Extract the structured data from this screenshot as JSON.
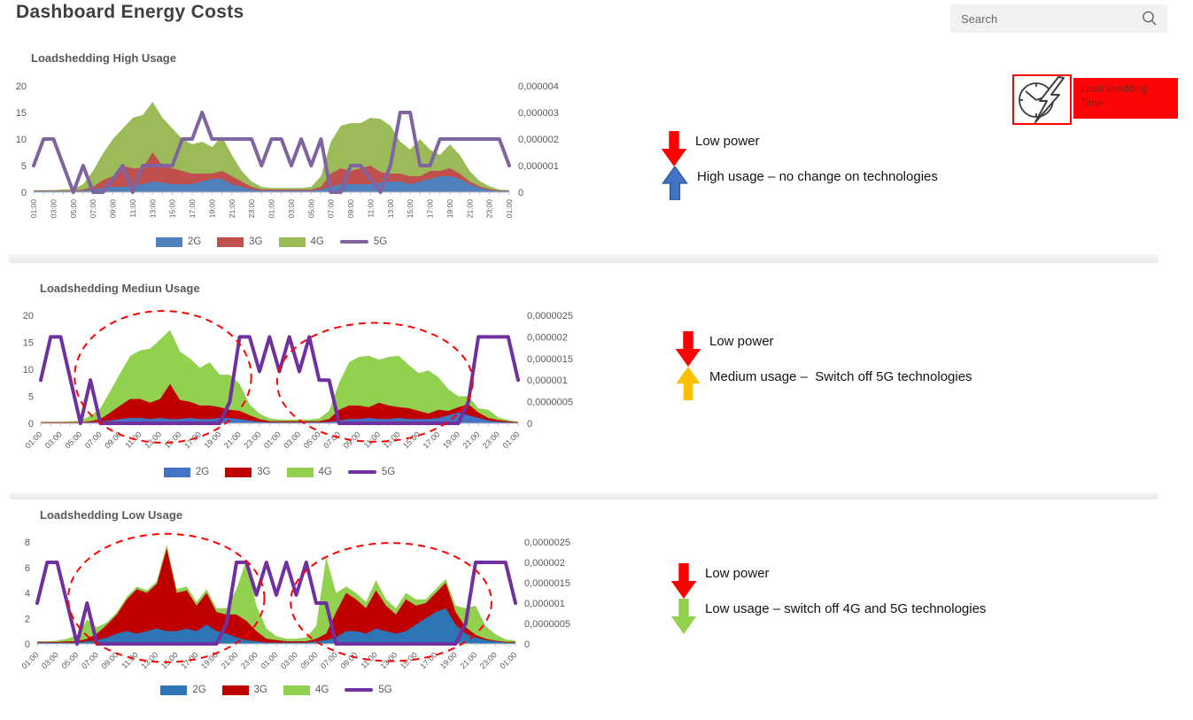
{
  "header": {
    "title": "Dashboard Energy Costs",
    "search_placeholder": "Search"
  },
  "badge": {
    "label": "Load shedding Time",
    "bg": "#fe0505",
    "text_color": "#7b231c",
    "border": "#ff0000"
  },
  "annotations": {
    "high": {
      "items": [
        {
          "icon": "down-arrow",
          "label": "Low power",
          "fill": "#ff0000",
          "stroke": "#e60000"
        },
        {
          "icon": "up-arrow",
          "label": "High usage – no change on technologies",
          "fill": "#4472c4",
          "stroke": "#2e5a9c"
        }
      ]
    },
    "medium": {
      "items": [
        {
          "icon": "down-arrow",
          "label": "Low power",
          "fill": "#ff0000",
          "stroke": "#e60000"
        },
        {
          "icon": "up-arrow",
          "label": "Medium usage –  Switch off 5G technologies",
          "fill": "#ffc000",
          "stroke": "#e8a900"
        }
      ]
    },
    "low": {
      "items": [
        {
          "icon": "down-arrow",
          "label": "Low power",
          "fill": "#ff0000",
          "stroke": "#e60000"
        },
        {
          "icon": "down-arrow",
          "label": "Low usage – switch off 4G and 5G technologies",
          "fill": "#92d050",
          "stroke": "#7ab33e"
        }
      ]
    }
  },
  "chart_data": [
    {
      "type": "area",
      "title": "Loadshedding High Usage",
      "ylim_left": [
        0,
        20
      ],
      "yticks_left": [
        20,
        15,
        10,
        5,
        0
      ],
      "right_axis_labels": [
        "0,000004",
        "0,000003",
        "0,000002",
        "0,000001",
        "0"
      ],
      "ylim_right_micro": [
        0,
        4
      ],
      "x_tick_rotation": "vertical",
      "legend_position": "bottom",
      "x_tick_labels": [
        "01:00",
        "03:00",
        "05:00",
        "07:00",
        "09:00",
        "11:00",
        "13:00",
        "15:00",
        "17:00",
        "19:00",
        "21:00",
        "23:00",
        "01:00",
        "03:00",
        "05:00",
        "07:00",
        "09:00",
        "11:00",
        "13:00",
        "15:00",
        "17:00",
        "19:00",
        "21:00",
        "23:00",
        "01:00"
      ],
      "series": [
        {
          "name": "2G",
          "type": "area",
          "axis": "left",
          "color": "#4f81bd",
          "values": [
            0.2,
            0.2,
            0.2,
            0.2,
            0.2,
            0.3,
            0.5,
            0.8,
            1,
            1,
            1.2,
            1.5,
            2,
            1.8,
            1.5,
            1.5,
            1.5,
            2,
            2.5,
            2.5,
            1.5,
            1,
            0.5,
            0.3,
            0.3,
            0.3,
            0.3,
            0.3,
            0.3,
            0.5,
            1,
            1.5,
            1.5,
            1.5,
            1.5,
            1.8,
            2,
            2,
            1.5,
            2,
            2.5,
            3,
            3,
            2.5,
            1.5,
            0.8,
            0.4,
            0.2,
            0.2
          ]
        },
        {
          "name": "3G",
          "type": "area",
          "axis": "left",
          "color": "#c0504d",
          "values": [
            0.1,
            0.1,
            0.1,
            0.1,
            0.1,
            0.2,
            0.5,
            1.5,
            2,
            4,
            3.3,
            3,
            5.5,
            3.2,
            3,
            2.5,
            2,
            1.5,
            1,
            1.5,
            1.5,
            1,
            0.5,
            0.2,
            0.2,
            0.2,
            0.2,
            0.2,
            0.2,
            0.5,
            2.5,
            3,
            2.5,
            3,
            3.5,
            2,
            1.5,
            1.5,
            1.5,
            1,
            1.5,
            1,
            1.5,
            1,
            0.5,
            0.3,
            0.2,
            0.1,
            0.1
          ]
        },
        {
          "name": "4G",
          "type": "area",
          "axis": "left",
          "color": "#9bbb59",
          "values": [
            0.1,
            0.1,
            0.1,
            0.2,
            0.3,
            1,
            3,
            5,
            7,
            7,
            9.5,
            10,
            9.5,
            9,
            7.5,
            6,
            5.5,
            6,
            5,
            6.5,
            4,
            2,
            1,
            0.5,
            0.3,
            0.3,
            0.3,
            0.3,
            0.5,
            2,
            6,
            8,
            9,
            8.5,
            9,
            10,
            9,
            6,
            5,
            7,
            4,
            3,
            4.5,
            3.5,
            2,
            1,
            0.5,
            0.2,
            0.1
          ]
        },
        {
          "name": "5G",
          "type": "line",
          "axis": "right",
          "color": "#8064a2",
          "values_micro": [
            1,
            2,
            2,
            1,
            0,
            1,
            0,
            0,
            0.5,
            1,
            0,
            1,
            1,
            1,
            1,
            2,
            2,
            3,
            2,
            2,
            2,
            2,
            2,
            1,
            2,
            2,
            1,
            2,
            1,
            2,
            0,
            0,
            1,
            1,
            0.5,
            0,
            1,
            3,
            3,
            1,
            1,
            2,
            2,
            2,
            2,
            2,
            2,
            2,
            1
          ]
        }
      ]
    },
    {
      "type": "area",
      "title": "Loadshedding Mediun Usage",
      "ylim_left": [
        0,
        20
      ],
      "yticks_left": [
        20,
        15,
        10,
        5,
        0
      ],
      "right_axis_labels": [
        "0,0000025",
        "0,000002",
        "0,0000015",
        "0,000001",
        "0,0000005",
        "0"
      ],
      "ylim_right_micro": [
        0,
        2.5
      ],
      "x_tick_rotation": "45",
      "legend_position": "bottom",
      "x_tick_labels": [
        "01:00",
        "03:00",
        "05:00",
        "07:00",
        "09:00",
        "11:00",
        "13:00",
        "15:00",
        "17:00",
        "19:00",
        "21:00",
        "23:00",
        "01:00",
        "03:00",
        "05:00",
        "07:00",
        "09:00",
        "11:00",
        "13:00",
        "15:00",
        "17:00",
        "19:00",
        "21:00",
        "23:00",
        "01:00"
      ],
      "series": [
        {
          "name": "2G",
          "type": "area",
          "axis": "left",
          "color": "#4472c4",
          "values": [
            0.1,
            0.1,
            0.1,
            0.1,
            0.1,
            0.2,
            0.3,
            0.5,
            0.8,
            1,
            1,
            0.8,
            1,
            0.8,
            0.8,
            1,
            0.8,
            0.8,
            1,
            1,
            0.8,
            0.5,
            0.3,
            0.2,
            0.2,
            0.2,
            0.2,
            0.2,
            0.2,
            0.3,
            0.5,
            0.8,
            0.8,
            1,
            0.8,
            0.8,
            1,
            0.8,
            0.8,
            0.8,
            1,
            1.5,
            2,
            1.5,
            1,
            0.5,
            0.3,
            0.2,
            0.1
          ]
        },
        {
          "name": "3G",
          "type": "area",
          "axis": "left",
          "color": "#c00000",
          "values": [
            0.1,
            0.1,
            0.1,
            0.1,
            0.1,
            0.2,
            0.5,
            1.5,
            2.5,
            3.5,
            3.5,
            3,
            3.5,
            6.5,
            3.5,
            3,
            2.5,
            2.5,
            2,
            1.5,
            1.5,
            1,
            0.5,
            0.2,
            0.2,
            0.2,
            0.2,
            0.2,
            0.2,
            0.5,
            2,
            2.5,
            2.5,
            2,
            3,
            2.5,
            2,
            2,
            1.5,
            1,
            1.5,
            0.8,
            1,
            2,
            1,
            0.5,
            0.3,
            0.2,
            0.1
          ]
        },
        {
          "name": "4G",
          "type": "area",
          "axis": "left",
          "color": "#92d050",
          "values": [
            0.1,
            0.1,
            0.1,
            0.2,
            0.3,
            1,
            2,
            4,
            6,
            8,
            9,
            10,
            11,
            10,
            9,
            8,
            7,
            8,
            6,
            6.5,
            5,
            2,
            1,
            0.5,
            0.3,
            0.3,
            0.3,
            0.3,
            0.5,
            1.5,
            5,
            8,
            9,
            9.5,
            8,
            9,
            9.5,
            8,
            7,
            8,
            6,
            4,
            2,
            1.5,
            0.8,
            1.5,
            0.5,
            0.2,
            0.1
          ]
        },
        {
          "name": "5G",
          "type": "line",
          "axis": "right",
          "color": "#7030a0",
          "values_micro": [
            1,
            2,
            2,
            1,
            0,
            1,
            0,
            0,
            0,
            0,
            0,
            0,
            0,
            0,
            0,
            0,
            0,
            0,
            0,
            0.5,
            2,
            2,
            1.2,
            2,
            1.2,
            2,
            1.2,
            2,
            1,
            1,
            0,
            0,
            0,
            0,
            0,
            0,
            0,
            0,
            0,
            0,
            0,
            0,
            0,
            0.5,
            2,
            2,
            2,
            2,
            1
          ]
        }
      ],
      "highlight_ellipses": [
        {
          "cx": 0.256,
          "cy": 0.57,
          "rx": 0.185,
          "ry": 0.61,
          "color": "#ff0000"
        },
        {
          "cx": 0.7,
          "cy": 0.62,
          "rx": 0.205,
          "ry": 0.55,
          "color": "#ff0000"
        }
      ]
    },
    {
      "type": "area",
      "title": "Loadshedding Low Usage",
      "ylim_left": [
        0,
        8
      ],
      "yticks_left": [
        8,
        6,
        4,
        2,
        0
      ],
      "right_axis_labels": [
        "0,0000025",
        "0,000002",
        "0,0000015",
        "0,000001",
        "0,0000005",
        "0"
      ],
      "ylim_right_micro": [
        0,
        2.5
      ],
      "x_tick_rotation": "45",
      "legend_position": "bottom",
      "x_tick_labels": [
        "01:00",
        "03:00",
        "05:00",
        "07:00",
        "09:00",
        "11:00",
        "13:00",
        "15:00",
        "17:00",
        "19:00",
        "21:00",
        "23:00",
        "01:00",
        "03:00",
        "05:00",
        "07:00",
        "09:00",
        "11:00",
        "13:00",
        "15:00",
        "17:00",
        "19:00",
        "21:00",
        "23:00",
        "01:00"
      ],
      "series": [
        {
          "name": "2G",
          "type": "area",
          "axis": "left",
          "color": "#2e75b6",
          "values": [
            0.1,
            0.1,
            0.1,
            0.1,
            0.1,
            0.2,
            0.3,
            0.5,
            0.8,
            1,
            0.8,
            1,
            1.2,
            1,
            1,
            1.2,
            1,
            1.5,
            1,
            0.8,
            0.5,
            0.3,
            0.2,
            0.1,
            0.1,
            0.1,
            0.1,
            0.1,
            0.2,
            0.3,
            0.5,
            1,
            1,
            0.8,
            1.2,
            1,
            0.8,
            1,
            1.5,
            2,
            2.5,
            2.8,
            1.5,
            0.8,
            0.5,
            0.3,
            0.2,
            0.1,
            0.1
          ]
        },
        {
          "name": "3G",
          "type": "area",
          "axis": "left",
          "color": "#c00000",
          "values": [
            0.05,
            0.05,
            0.05,
            0.1,
            0.1,
            0.2,
            0.5,
            1,
            1.5,
            2.5,
            3.5,
            3,
            3.5,
            6.5,
            3,
            3,
            2,
            2.5,
            1.5,
            1.5,
            1.8,
            1.5,
            0.8,
            0.3,
            0.2,
            0.1,
            0.1,
            0.1,
            0.2,
            0.5,
            2,
            3,
            2.5,
            2,
            3,
            2,
            1.5,
            2.5,
            1.5,
            1.2,
            1.5,
            2,
            1,
            0.5,
            0.2,
            0.1,
            0.05,
            0.05,
            0.05
          ]
        },
        {
          "name": "4G",
          "type": "area",
          "axis": "left",
          "color": "#92d050",
          "values": [
            0.05,
            0.05,
            0.1,
            0.2,
            0.5,
            1.5,
            0.5,
            0.2,
            0.2,
            0.2,
            0.2,
            0.2,
            0.2,
            0.3,
            0.3,
            0.3,
            0.3,
            0.3,
            0.3,
            0.5,
            2,
            4.8,
            2,
            0.8,
            0.3,
            0.2,
            0.2,
            0.3,
            1,
            6,
            1.5,
            0.5,
            0.5,
            0.5,
            0.8,
            0.5,
            0.5,
            0.5,
            0.5,
            0.3,
            0.3,
            0.3,
            0.5,
            1.5,
            2.3,
            1,
            0.5,
            0.2,
            0.1
          ]
        },
        {
          "name": "5G",
          "type": "line",
          "axis": "right",
          "color": "#7030a0",
          "values_micro": [
            1,
            2,
            2,
            1,
            0,
            1,
            0,
            0,
            0,
            0,
            0,
            0,
            0,
            0,
            0,
            0,
            0,
            0,
            0,
            0.5,
            2,
            2,
            1.2,
            2,
            1.2,
            2,
            1.2,
            2,
            1,
            1,
            0,
            0,
            0,
            0,
            0,
            0,
            0,
            0,
            0,
            0,
            0,
            0,
            0,
            0.5,
            2,
            2,
            2,
            2,
            1
          ]
        }
      ],
      "highlight_ellipses": [
        {
          "cx": 0.27,
          "cy": 0.55,
          "rx": 0.205,
          "ry": 0.63,
          "color": "#ff0000"
        },
        {
          "cx": 0.74,
          "cy": 0.59,
          "rx": 0.21,
          "ry": 0.58,
          "color": "#ff0000"
        }
      ]
    }
  ]
}
